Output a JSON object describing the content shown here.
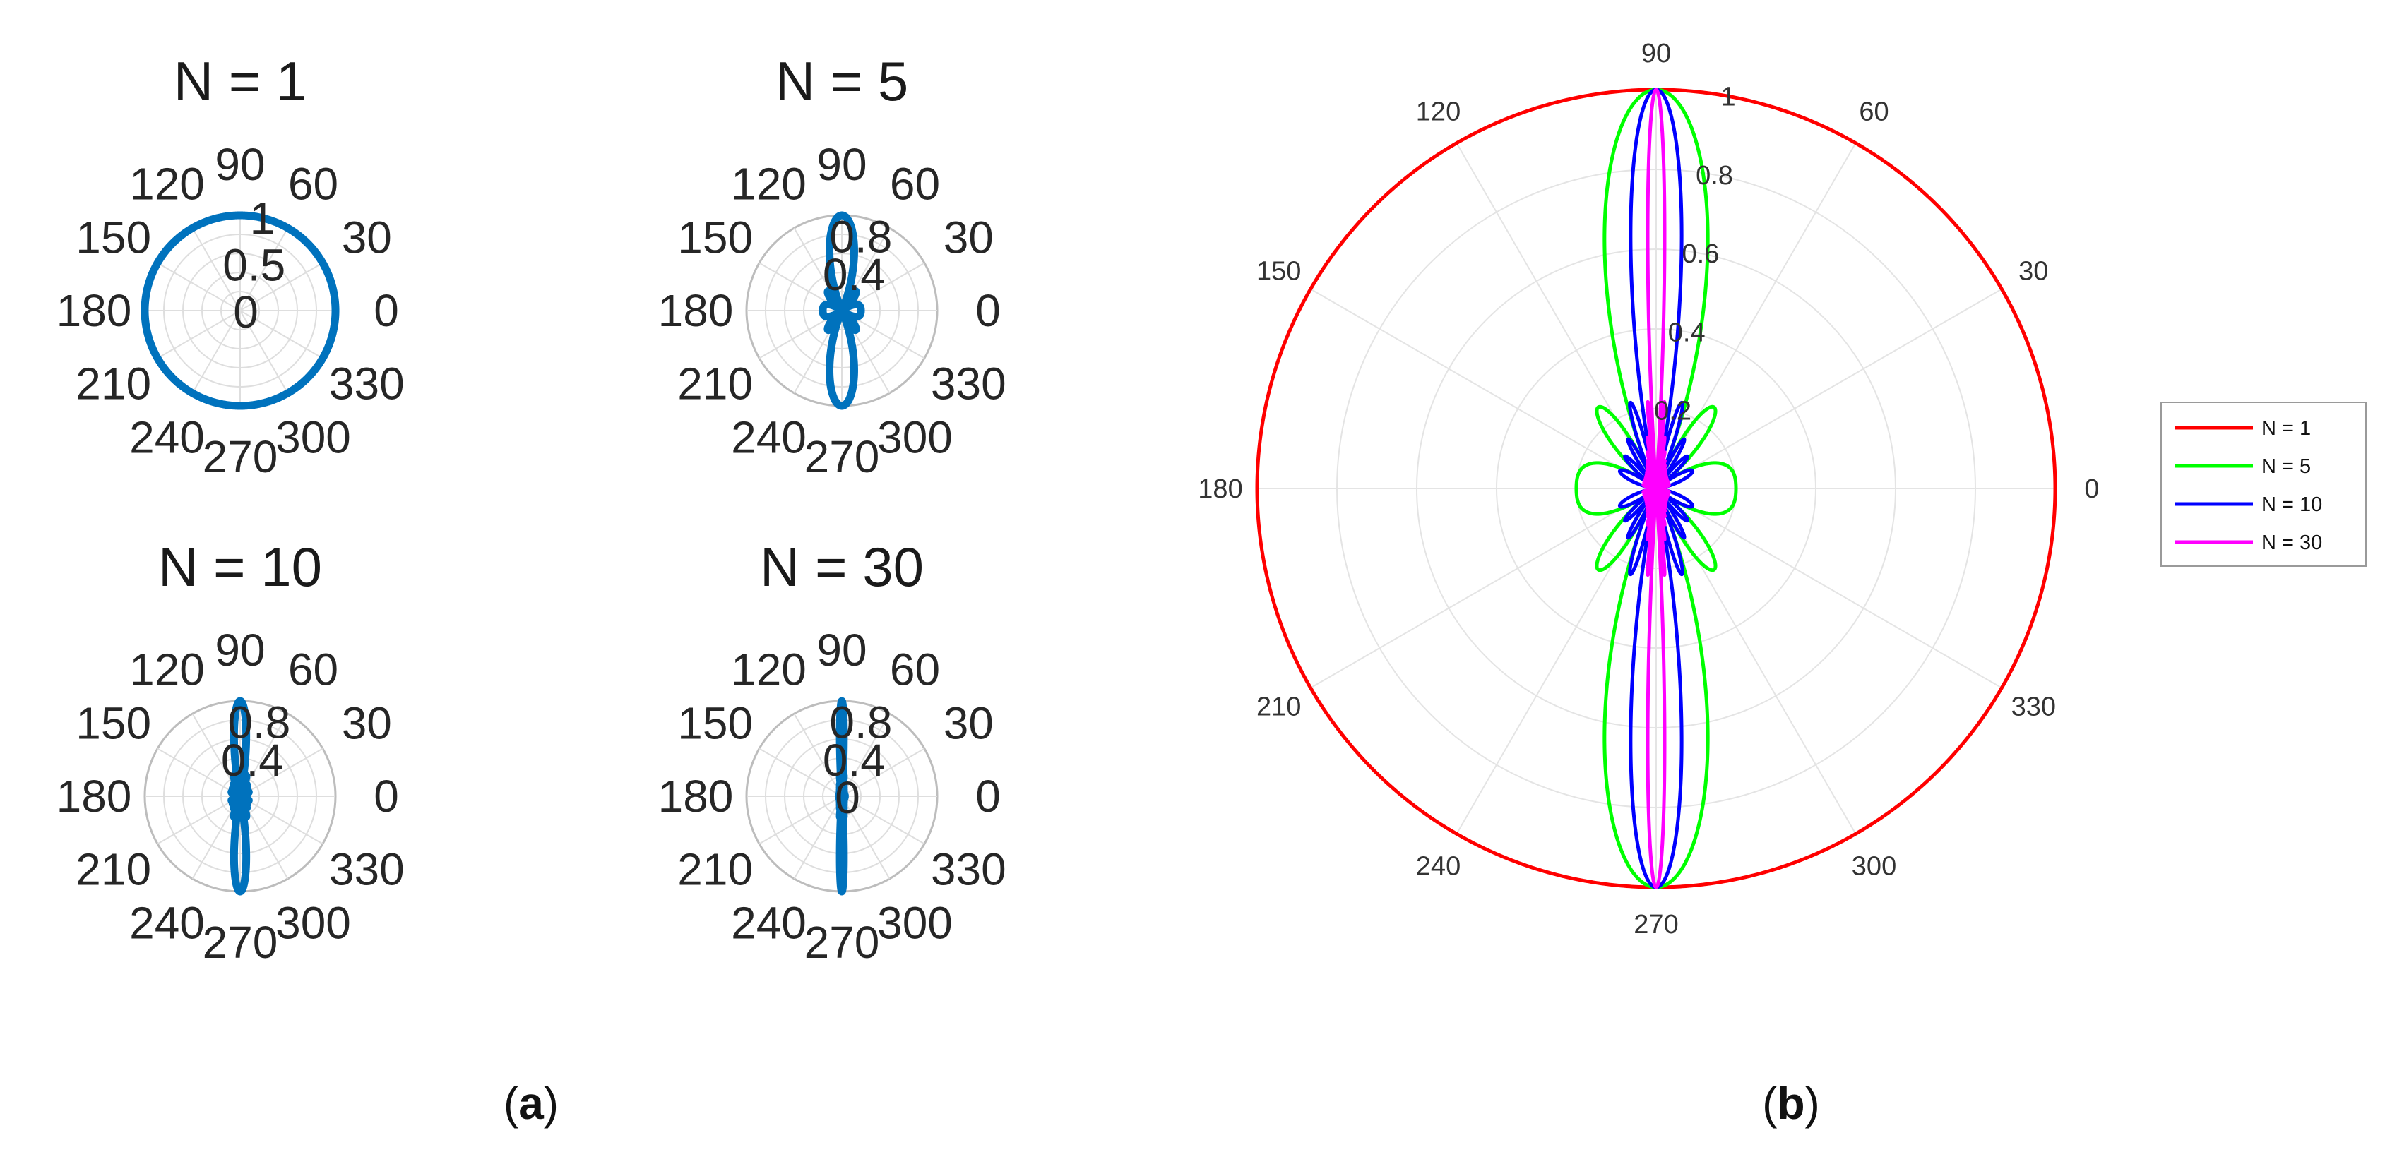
{
  "chart_data": [
    {
      "type": "polar",
      "id": "a",
      "caption_letter": "a",
      "subplots": [
        {
          "title": "N = 1",
          "N": 1,
          "r_ticks": [
            "0",
            "0.5",
            "1"
          ],
          "rlim": [
            0,
            1
          ],
          "color": "#0072bd"
        },
        {
          "title": "N = 5",
          "N": 5,
          "r_ticks": [
            "0.4",
            "0.8"
          ],
          "rlim": [
            0,
            1
          ],
          "color": "#0072bd"
        },
        {
          "title": "N = 10",
          "N": 10,
          "r_ticks": [
            "0.4",
            "0.8"
          ],
          "rlim": [
            0,
            1
          ],
          "color": "#0072bd"
        },
        {
          "title": "N = 30",
          "N": 30,
          "r_ticks": [
            "0",
            "0.4",
            "0.8"
          ],
          "rlim": [
            0,
            1
          ],
          "color": "#0072bd"
        }
      ],
      "theta_labels": [
        "0",
        "30",
        "60",
        "90",
        "120",
        "150",
        "180",
        "210",
        "240",
        "270",
        "300",
        "330"
      ],
      "function": "|sin(N·(π/2)·cos θ) / (N·sin((π/2)·cos θ))|"
    },
    {
      "type": "polar",
      "id": "b",
      "caption_letter": "b",
      "series": [
        {
          "name": "N = 1",
          "N": 1,
          "color": "#ff0000"
        },
        {
          "name": "N = 5",
          "N": 5,
          "color": "#00ff00"
        },
        {
          "name": "N = 10",
          "N": 10,
          "color": "#0000ff"
        },
        {
          "name": "N = 30",
          "N": 30,
          "color": "#ff00ff"
        }
      ],
      "r_ticks": [
        "0.2",
        "0.4",
        "0.6",
        "0.8",
        "1"
      ],
      "rlim": [
        0,
        1
      ],
      "theta_labels": [
        "0",
        "30",
        "60",
        "90",
        "120",
        "150",
        "180",
        "210",
        "240",
        "270",
        "300",
        "330"
      ],
      "legend": "right",
      "grid": true
    }
  ]
}
